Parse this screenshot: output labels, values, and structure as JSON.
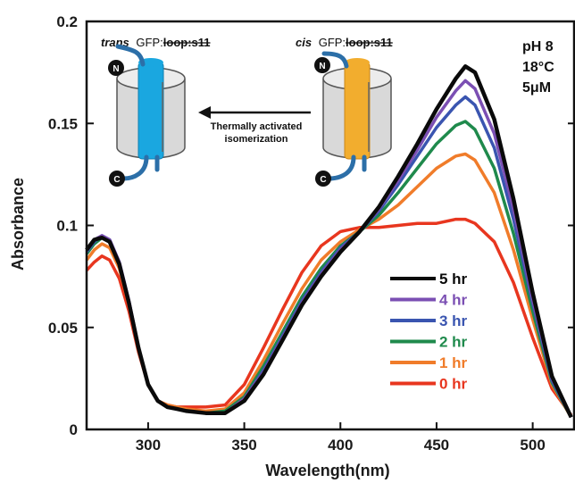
{
  "chart_data": {
    "type": "line",
    "xlabel": "Wavelength(nm)",
    "ylabel": "Absorbance",
    "xlim": [
      268,
      522
    ],
    "ylim": [
      0,
      0.2
    ],
    "x_ticks": [
      300,
      350,
      400,
      450,
      500
    ],
    "y_ticks": [
      "0",
      "0.05",
      "0.1",
      "0.15",
      "0.2"
    ],
    "conditions": [
      "pH 8",
      "18°C",
      "5μM"
    ],
    "legend_position": "center-right",
    "series": [
      {
        "name": "0 hr",
        "color": "#e8361f",
        "x": [
          268,
          272,
          276,
          280,
          285,
          290,
          295,
          300,
          305,
          310,
          315,
          320,
          330,
          340,
          350,
          360,
          370,
          380,
          390,
          400,
          410,
          420,
          430,
          440,
          450,
          460,
          465,
          470,
          480,
          490,
          500,
          510,
          520
        ],
        "y": [
          0.078,
          0.082,
          0.085,
          0.083,
          0.074,
          0.058,
          0.038,
          0.022,
          0.014,
          0.012,
          0.011,
          0.011,
          0.011,
          0.012,
          0.022,
          0.04,
          0.059,
          0.077,
          0.09,
          0.097,
          0.099,
          0.099,
          0.1,
          0.101,
          0.101,
          0.103,
          0.103,
          0.101,
          0.092,
          0.072,
          0.045,
          0.02,
          0.007
        ]
      },
      {
        "name": "1 hr",
        "color": "#f07c2a",
        "x": [
          268,
          272,
          276,
          280,
          285,
          290,
          295,
          300,
          305,
          310,
          315,
          320,
          330,
          340,
          350,
          360,
          370,
          380,
          390,
          400,
          410,
          420,
          430,
          440,
          450,
          460,
          465,
          470,
          480,
          490,
          500,
          510,
          520
        ],
        "y": [
          0.083,
          0.088,
          0.091,
          0.089,
          0.079,
          0.061,
          0.039,
          0.022,
          0.014,
          0.012,
          0.011,
          0.01,
          0.009,
          0.01,
          0.018,
          0.034,
          0.052,
          0.069,
          0.083,
          0.092,
          0.098,
          0.103,
          0.11,
          0.119,
          0.128,
          0.134,
          0.135,
          0.132,
          0.116,
          0.088,
          0.054,
          0.022,
          0.006
        ]
      },
      {
        "name": "2 hr",
        "color": "#1f8a4c",
        "x": [
          268,
          272,
          276,
          280,
          285,
          290,
          295,
          300,
          305,
          310,
          315,
          320,
          330,
          340,
          350,
          360,
          370,
          380,
          390,
          400,
          410,
          420,
          430,
          440,
          450,
          460,
          465,
          470,
          480,
          490,
          500,
          510,
          520
        ],
        "y": [
          0.086,
          0.091,
          0.094,
          0.092,
          0.081,
          0.062,
          0.04,
          0.022,
          0.014,
          0.011,
          0.01,
          0.009,
          0.008,
          0.009,
          0.016,
          0.031,
          0.048,
          0.065,
          0.079,
          0.09,
          0.097,
          0.105,
          0.116,
          0.128,
          0.14,
          0.149,
          0.151,
          0.147,
          0.128,
          0.096,
          0.058,
          0.023,
          0.006
        ]
      },
      {
        "name": "3 hr",
        "color": "#3a55b0",
        "x": [
          268,
          272,
          276,
          280,
          285,
          290,
          295,
          300,
          305,
          310,
          315,
          320,
          330,
          340,
          350,
          360,
          370,
          380,
          390,
          400,
          410,
          420,
          430,
          440,
          450,
          460,
          465,
          470,
          480,
          490,
          500,
          510,
          520
        ],
        "y": [
          0.087,
          0.092,
          0.095,
          0.093,
          0.082,
          0.063,
          0.04,
          0.022,
          0.014,
          0.011,
          0.01,
          0.009,
          0.008,
          0.008,
          0.015,
          0.029,
          0.046,
          0.063,
          0.077,
          0.089,
          0.097,
          0.107,
          0.12,
          0.134,
          0.148,
          0.159,
          0.163,
          0.159,
          0.138,
          0.103,
          0.062,
          0.024,
          0.006
        ]
      },
      {
        "name": "4 hr",
        "color": "#7b4fb3",
        "x": [
          268,
          272,
          276,
          280,
          285,
          290,
          295,
          300,
          305,
          310,
          315,
          320,
          330,
          340,
          350,
          360,
          370,
          380,
          390,
          400,
          410,
          420,
          430,
          440,
          450,
          460,
          465,
          470,
          480,
          490,
          500,
          510,
          520
        ],
        "y": [
          0.088,
          0.093,
          0.095,
          0.093,
          0.082,
          0.063,
          0.04,
          0.022,
          0.014,
          0.011,
          0.01,
          0.009,
          0.008,
          0.008,
          0.015,
          0.028,
          0.045,
          0.062,
          0.076,
          0.088,
          0.097,
          0.108,
          0.122,
          0.137,
          0.153,
          0.166,
          0.171,
          0.167,
          0.145,
          0.108,
          0.064,
          0.025,
          0.006
        ]
      },
      {
        "name": "5 hr",
        "color": "#0a0a0a",
        "x": [
          268,
          272,
          276,
          280,
          285,
          290,
          295,
          300,
          305,
          310,
          315,
          320,
          330,
          340,
          350,
          360,
          370,
          380,
          390,
          400,
          410,
          420,
          430,
          440,
          450,
          460,
          465,
          470,
          480,
          490,
          500,
          510,
          520
        ],
        "y": [
          0.088,
          0.093,
          0.094,
          0.092,
          0.081,
          0.062,
          0.04,
          0.022,
          0.014,
          0.011,
          0.01,
          0.009,
          0.008,
          0.008,
          0.014,
          0.027,
          0.044,
          0.061,
          0.075,
          0.087,
          0.097,
          0.109,
          0.124,
          0.14,
          0.157,
          0.172,
          0.178,
          0.175,
          0.152,
          0.113,
          0.067,
          0.026,
          0.006
        ]
      }
    ]
  },
  "inset": {
    "trans_italic": "trans",
    "trans_prefix": "GFP:",
    "trans_strike": "loop:s11",
    "cis_italic": "cis",
    "cis_prefix": "GFP:",
    "cis_strike": "loop:s11",
    "arrow_line1": "Thermally activated",
    "arrow_line2": "isomerization",
    "n_term": "N",
    "c_term": "C",
    "trans_color": "#1aa7e0",
    "cis_color": "#f2ad2e",
    "loop_color": "#2c6fa8"
  }
}
